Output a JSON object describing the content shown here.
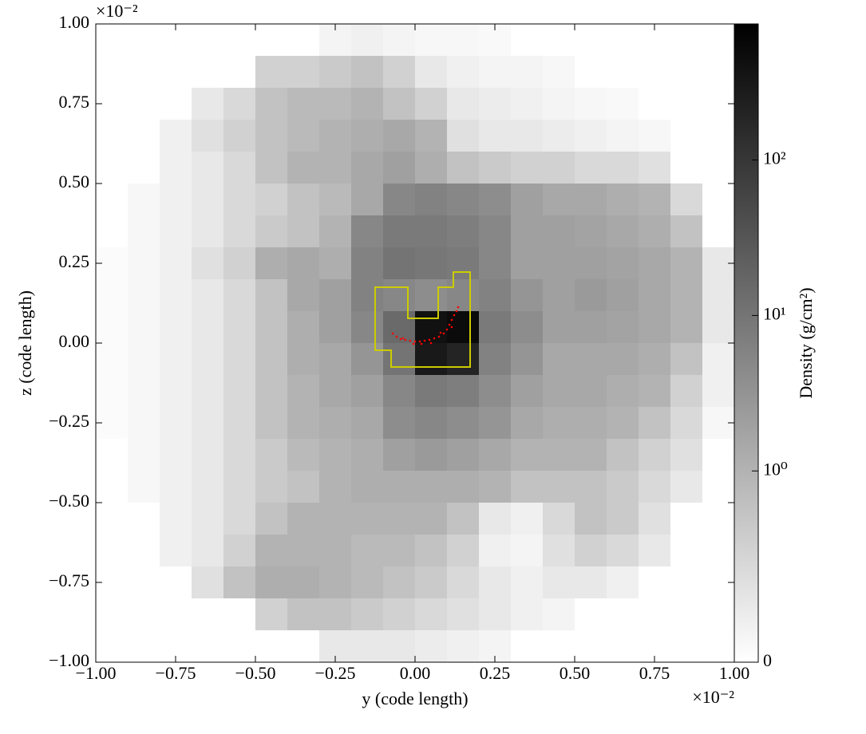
{
  "chart_data": {
    "type": "heatmap",
    "xlabel": "y  (code length)",
    "ylabel": "z  (code length)",
    "x_offset_text": "×10⁻²",
    "y_offset_text": "×10⁻²",
    "xlim": [
      -1,
      1
    ],
    "ylim": [
      -1,
      1
    ],
    "xticks": [
      {
        "value": -1,
        "label": "−1.00"
      },
      {
        "value": -0.75,
        "label": "−0.75"
      },
      {
        "value": -0.5,
        "label": "−0.50"
      },
      {
        "value": -0.25,
        "label": "−0.25"
      },
      {
        "value": 0,
        "label": "0.00"
      },
      {
        "value": 0.25,
        "label": "0.25"
      },
      {
        "value": 0.5,
        "label": "0.50"
      },
      {
        "value": 0.75,
        "label": "0.75"
      },
      {
        "value": 1,
        "label": "1.00"
      }
    ],
    "yticks": [
      {
        "value": -1,
        "label": "−1.00"
      },
      {
        "value": -0.75,
        "label": "−0.75"
      },
      {
        "value": -0.5,
        "label": "−0.50"
      },
      {
        "value": -0.25,
        "label": "−0.25"
      },
      {
        "value": 0,
        "label": "0.00"
      },
      {
        "value": 0.25,
        "label": "0.25"
      },
      {
        "value": 0.5,
        "label": "0.50"
      },
      {
        "value": 0.75,
        "label": "0.75"
      },
      {
        "value": 1,
        "label": "1.00"
      }
    ],
    "colormap": "gray_r",
    "z": [
      [
        0,
        0,
        0,
        0,
        0,
        0,
        0,
        0.15,
        0.2,
        0.15,
        0.1,
        0.1,
        0.08,
        0,
        0,
        0,
        0,
        0,
        0,
        0
      ],
      [
        0,
        0,
        0,
        0,
        0,
        0.6,
        0.6,
        0.7,
        0.8,
        0.6,
        0.3,
        0.2,
        0.15,
        0.15,
        0.1,
        0,
        0,
        0,
        0,
        0
      ],
      [
        0,
        0,
        0,
        0.3,
        0.5,
        0.8,
        0.9,
        0.9,
        1.0,
        0.8,
        0.6,
        0.3,
        0.25,
        0.2,
        0.15,
        0.1,
        0.08,
        0,
        0,
        0
      ],
      [
        0,
        0,
        0.2,
        0.4,
        0.6,
        0.8,
        0.9,
        1.0,
        1.2,
        1.5,
        1.0,
        0.4,
        0.3,
        0.3,
        0.25,
        0.2,
        0.15,
        0.1,
        0,
        0
      ],
      [
        0,
        0,
        0.2,
        0.3,
        0.5,
        0.8,
        1.0,
        1.0,
        1.5,
        2.0,
        1.2,
        0.8,
        0.7,
        0.6,
        0.6,
        0.5,
        0.5,
        0.4,
        0,
        0
      ],
      [
        0,
        0.1,
        0.2,
        0.3,
        0.5,
        0.6,
        0.8,
        0.9,
        1.5,
        5,
        6,
        5,
        4,
        2,
        1.5,
        1.5,
        1.2,
        1.0,
        0.5,
        0
      ],
      [
        0,
        0.1,
        0.2,
        0.3,
        0.5,
        0.7,
        0.8,
        1.0,
        5,
        8,
        8,
        7,
        5,
        2,
        2,
        1.8,
        1.5,
        1.2,
        0.8,
        0
      ],
      [
        0.05,
        0.1,
        0.2,
        0.4,
        0.6,
        1.2,
        1.5,
        1.2,
        6,
        10,
        9,
        8,
        5,
        2,
        2,
        2,
        1.8,
        1.5,
        1.0,
        0.3
      ],
      [
        0.05,
        0.1,
        0.2,
        0.3,
        0.5,
        0.8,
        1.5,
        2,
        6,
        5,
        4,
        5,
        6,
        3,
        2,
        2.5,
        2,
        1.5,
        1.0,
        0.3
      ],
      [
        0.05,
        0.1,
        0.2,
        0.3,
        0.5,
        0.8,
        1.2,
        2,
        5,
        15,
        400,
        500,
        8,
        4,
        2,
        2,
        1.8,
        1.5,
        1.0,
        0.3
      ],
      [
        0.05,
        0.1,
        0.2,
        0.3,
        0.5,
        0.8,
        1.2,
        1.5,
        3,
        10,
        300,
        200,
        6,
        3,
        1.5,
        1.5,
        1.5,
        1.2,
        0.8,
        0.2
      ],
      [
        0.05,
        0.1,
        0.2,
        0.3,
        0.5,
        0.8,
        1.0,
        1.5,
        2,
        5,
        8,
        7,
        4,
        2,
        1.5,
        1.5,
        1.2,
        1.0,
        0.6,
        0.2
      ],
      [
        0.05,
        0.1,
        0.2,
        0.3,
        0.5,
        0.8,
        1.0,
        1.2,
        1.5,
        4,
        5,
        4,
        3,
        1.5,
        1.2,
        1.2,
        1.0,
        0.8,
        0.5,
        0.1
      ],
      [
        0,
        0.1,
        0.2,
        0.3,
        0.5,
        0.7,
        0.9,
        1.0,
        1.2,
        2,
        2.5,
        2,
        1.5,
        1.0,
        1.0,
        1.0,
        0.8,
        0.6,
        0.4,
        0
      ],
      [
        0,
        0.1,
        0.2,
        0.3,
        0.5,
        0.7,
        0.8,
        1.0,
        1.2,
        1.2,
        1.2,
        1.2,
        1.0,
        0.8,
        0.8,
        0.8,
        0.7,
        0.5,
        0.3,
        0
      ],
      [
        0,
        0,
        0.2,
        0.3,
        0.5,
        0.8,
        1.0,
        1.0,
        1.0,
        1.0,
        1.0,
        0.8,
        0.3,
        0.2,
        0.5,
        0.8,
        0.7,
        0.4,
        0,
        0
      ],
      [
        0,
        0,
        0.2,
        0.3,
        0.6,
        1.0,
        1.0,
        1.0,
        0.9,
        0.9,
        0.8,
        0.6,
        0.2,
        0.15,
        0.4,
        0.6,
        0.5,
        0.3,
        0,
        0
      ],
      [
        0,
        0,
        0,
        0.4,
        0.8,
        1.2,
        1.2,
        1.0,
        0.9,
        0.8,
        0.7,
        0.5,
        0.3,
        0.2,
        0.3,
        0.3,
        0.2,
        0,
        0,
        0
      ],
      [
        0,
        0,
        0,
        0,
        0,
        0.6,
        0.8,
        0.8,
        0.7,
        0.6,
        0.5,
        0.4,
        0.3,
        0.2,
        0.15,
        0,
        0,
        0,
        0,
        0
      ],
      [
        0,
        0,
        0,
        0,
        0,
        0,
        0,
        0.3,
        0.3,
        0.3,
        0.25,
        0.2,
        0.15,
        0,
        0,
        0,
        0,
        0,
        0,
        0
      ]
    ],
    "colorbar": {
      "label": "Density  (g/cm²)",
      "norm": "symlog",
      "lim": [
        0,
        750
      ],
      "ticks": [
        0,
        {
          "value": 1,
          "label": "10⁰"
        },
        {
          "value": 10,
          "label": "10¹"
        },
        {
          "value": 100,
          "label": "10²"
        }
      ]
    },
    "contour": {
      "color": "#cccc00",
      "x": [
        -0.125,
        -0.0225,
        -0.0225,
        0.0725,
        0.0725,
        0.12,
        0.12,
        0.1725,
        0.1725,
        -0.075,
        -0.075,
        -0.125
      ],
      "y": [
        0.175,
        0.175,
        0.0775,
        0.0775,
        0.175,
        0.175,
        0.2225,
        0.2225,
        -0.075,
        -0.075,
        -0.0225,
        -0.0225
      ]
    },
    "particles": {
      "color": "#ff0000",
      "x": [
        -0.07,
        -0.0575,
        -0.045,
        -0.03,
        -0.015,
        0,
        0.015,
        0.03,
        0.045,
        0.06,
        0.075,
        0.09,
        0.1,
        0.1075,
        0.115,
        0.1225,
        0.13,
        0.135,
        0.02,
        0.05,
        0.08,
        0.115,
        -0.0375,
        -0.005
      ],
      "y": [
        0.03,
        0.02,
        0.0125,
        0.01,
        0.0075,
        0.005,
        0.005,
        0.0075,
        0.01,
        0.015,
        0.02,
        0.03,
        0.0425,
        0.0575,
        0.0725,
        0.0875,
        0.1,
        0.1125,
        -0.0025,
        0,
        0.0325,
        0.05,
        0.015,
        -0.0025
      ]
    }
  }
}
